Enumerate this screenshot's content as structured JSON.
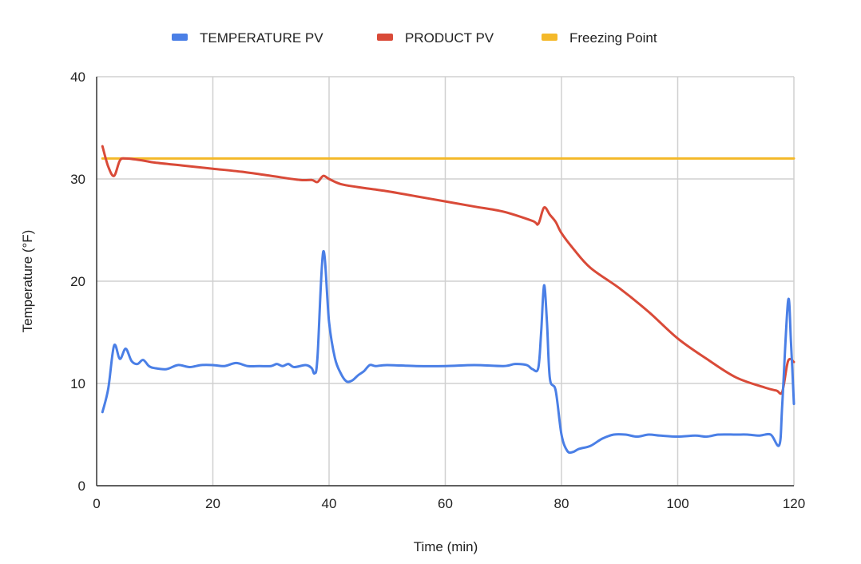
{
  "chart_data": {
    "type": "line",
    "title": "",
    "xlabel": "Time (min)",
    "ylabel": "Temperature (°F)",
    "xlim": [
      0,
      120
    ],
    "ylim": [
      0,
      40
    ],
    "xticks": [
      0,
      20,
      40,
      60,
      80,
      100,
      120
    ],
    "yticks": [
      0,
      10,
      20,
      30,
      40
    ],
    "grid": true,
    "legend_position": "top-center",
    "series": [
      {
        "name": "TEMPERATURE PV",
        "color": "#4a7fe6",
        "points": [
          [
            1,
            7.2
          ],
          [
            2,
            9.5
          ],
          [
            3,
            13.7
          ],
          [
            4,
            12.4
          ],
          [
            5,
            13.4
          ],
          [
            6,
            12.2
          ],
          [
            7,
            11.9
          ],
          [
            8,
            12.3
          ],
          [
            9,
            11.7
          ],
          [
            10,
            11.5
          ],
          [
            12,
            11.4
          ],
          [
            14,
            11.8
          ],
          [
            16,
            11.6
          ],
          [
            18,
            11.8
          ],
          [
            20,
            11.8
          ],
          [
            22,
            11.7
          ],
          [
            24,
            12.0
          ],
          [
            26,
            11.7
          ],
          [
            28,
            11.7
          ],
          [
            30,
            11.7
          ],
          [
            31,
            11.9
          ],
          [
            32,
            11.7
          ],
          [
            33,
            11.9
          ],
          [
            34,
            11.6
          ],
          [
            36,
            11.8
          ],
          [
            37,
            11.5
          ],
          [
            37.5,
            11.0
          ],
          [
            38,
            12.5
          ],
          [
            39,
            22.9
          ],
          [
            40,
            16
          ],
          [
            41,
            12.5
          ],
          [
            42,
            11
          ],
          [
            43,
            10.2
          ],
          [
            44,
            10.3
          ],
          [
            45,
            10.8
          ],
          [
            46,
            11.2
          ],
          [
            47,
            11.8
          ],
          [
            48,
            11.7
          ],
          [
            50,
            11.8
          ],
          [
            55,
            11.7
          ],
          [
            60,
            11.7
          ],
          [
            65,
            11.8
          ],
          [
            70,
            11.7
          ],
          [
            72,
            11.9
          ],
          [
            74,
            11.8
          ],
          [
            75,
            11.4
          ],
          [
            76,
            11.5
          ],
          [
            76.5,
            15
          ],
          [
            77,
            19.6
          ],
          [
            77.5,
            16
          ],
          [
            78,
            10.5
          ],
          [
            79,
            9.3
          ],
          [
            80,
            5
          ],
          [
            81,
            3.4
          ],
          [
            82,
            3.3
          ],
          [
            83,
            3.6
          ],
          [
            85,
            3.9
          ],
          [
            87,
            4.6
          ],
          [
            89,
            5.0
          ],
          [
            91,
            5.0
          ],
          [
            93,
            4.8
          ],
          [
            95,
            5.0
          ],
          [
            97,
            4.9
          ],
          [
            100,
            4.8
          ],
          [
            103,
            4.9
          ],
          [
            105,
            4.8
          ],
          [
            107,
            5.0
          ],
          [
            110,
            5.0
          ],
          [
            112,
            5.0
          ],
          [
            114,
            4.9
          ],
          [
            116,
            5.0
          ],
          [
            117.5,
            4.0
          ],
          [
            118,
            8
          ],
          [
            119,
            18.1
          ],
          [
            119.5,
            14
          ],
          [
            120,
            8
          ]
        ]
      },
      {
        "name": "PRODUCT PV",
        "color": "#d94a38",
        "points": [
          [
            1,
            33.2
          ],
          [
            2,
            31.2
          ],
          [
            3,
            30.3
          ],
          [
            4,
            31.8
          ],
          [
            5,
            32.0
          ],
          [
            8,
            31.8
          ],
          [
            10,
            31.6
          ],
          [
            15,
            31.3
          ],
          [
            20,
            31.0
          ],
          [
            25,
            30.7
          ],
          [
            30,
            30.3
          ],
          [
            35,
            29.9
          ],
          [
            37,
            29.9
          ],
          [
            38,
            29.7
          ],
          [
            39,
            30.3
          ],
          [
            40,
            30.0
          ],
          [
            42,
            29.5
          ],
          [
            45,
            29.2
          ],
          [
            50,
            28.8
          ],
          [
            55,
            28.3
          ],
          [
            60,
            27.8
          ],
          [
            65,
            27.3
          ],
          [
            70,
            26.8
          ],
          [
            75,
            25.9
          ],
          [
            76,
            25.6
          ],
          [
            77,
            27.2
          ],
          [
            78,
            26.5
          ],
          [
            79,
            25.8
          ],
          [
            80,
            24.7
          ],
          [
            82,
            23.2
          ],
          [
            85,
            21.3
          ],
          [
            90,
            19.3
          ],
          [
            95,
            17.0
          ],
          [
            100,
            14.4
          ],
          [
            105,
            12.4
          ],
          [
            110,
            10.6
          ],
          [
            115,
            9.6
          ],
          [
            117,
            9.3
          ],
          [
            118,
            9.2
          ],
          [
            119,
            12.2
          ],
          [
            120,
            12.1
          ]
        ]
      },
      {
        "name": "Freezing Point",
        "color": "#f4b92a",
        "points": [
          [
            1,
            32
          ],
          [
            120,
            32
          ]
        ]
      }
    ]
  }
}
